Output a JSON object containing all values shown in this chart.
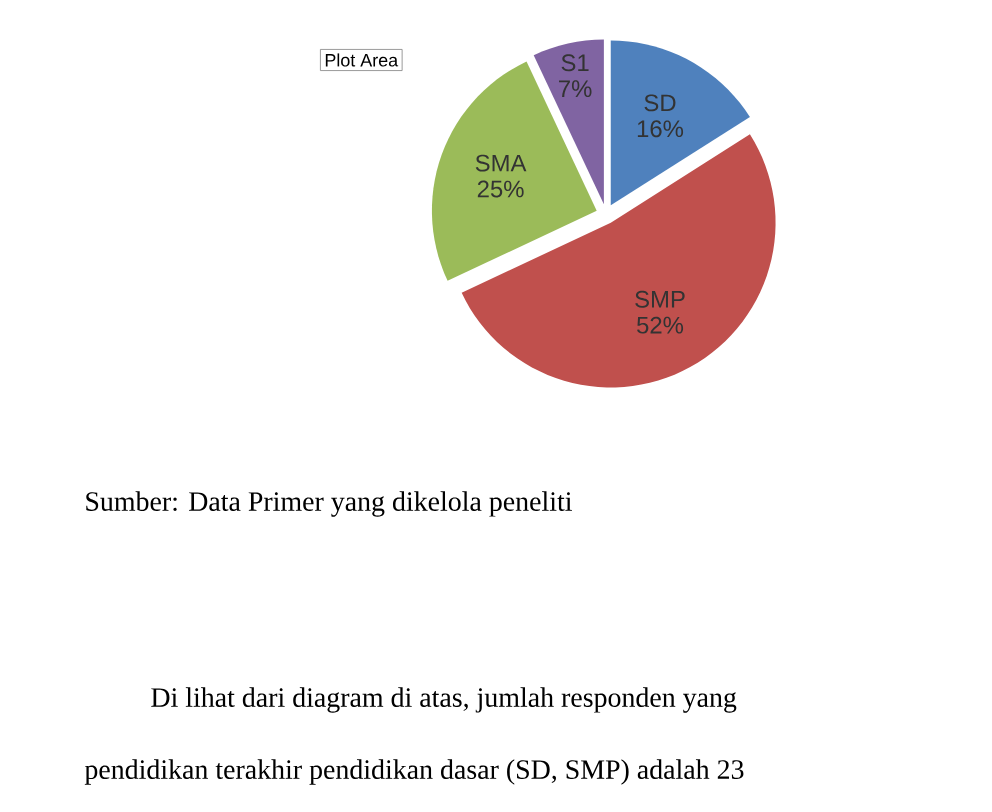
{
  "chart_data": {
    "type": "pie",
    "categories": [
      "SD",
      "SMP",
      "SMA",
      "S1"
    ],
    "values": [
      16,
      52,
      25,
      7
    ],
    "value_labels": [
      "16%",
      "52%",
      "25%",
      "7%"
    ],
    "colors": [
      "#4f81bd",
      "#c0504d",
      "#9bbb59",
      "#8064a2"
    ],
    "annotations": [
      "Plot Area",
      "Sumber: Data Primer yang dikelola peneliti",
      "Di lihat dari diagram di atas, jumlah responden yang",
      "pendidikan terakhir pendidikan dasar (SD, SMP) adalah 23"
    ]
  }
}
